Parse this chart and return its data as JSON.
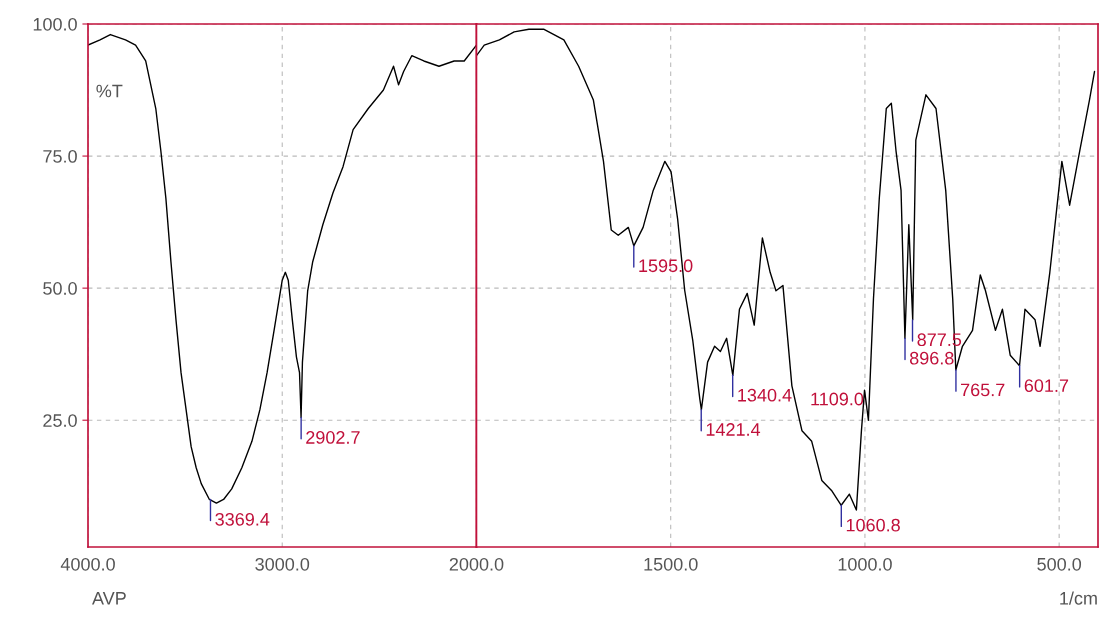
{
  "chart_data": [
    {
      "type": "line",
      "ylabel": "%T",
      "xlim": [
        4000,
        2000
      ],
      "ylim": [
        1,
        100
      ],
      "xticks": [
        {
          "value": 4000,
          "label": "4000.0"
        },
        {
          "value": 3000,
          "label": "3000.0"
        },
        {
          "value": 2000,
          "label": "2000.0"
        }
      ],
      "yticks": [
        {
          "value": 25,
          "label": "25.0"
        },
        {
          "value": 50,
          "label": "50.0"
        },
        {
          "value": 75,
          "label": "75.0"
        },
        {
          "value": 100,
          "label": "100.0"
        }
      ],
      "grid": true,
      "line_style": "solid",
      "series": [
        {
          "color": "#000000",
          "x": [
            4000,
            3938,
            3885,
            3807,
            3755,
            3703,
            3651,
            3625,
            3599,
            3573,
            3547,
            3521,
            3495,
            3469,
            3443,
            3417,
            3375,
            3339,
            3302,
            3260,
            3208,
            3156,
            3115,
            3078,
            3042,
            3000,
            2984,
            2969,
            2948,
            2927,
            2911,
            2903,
            2896,
            2869,
            2843,
            2791,
            2739,
            2687,
            2635,
            2557,
            2479,
            2427,
            2401,
            2375,
            2333,
            2271,
            2193,
            2115,
            2063,
            2000
          ],
          "values": [
            96,
            97,
            98,
            97,
            96,
            93,
            84,
            76,
            67,
            55,
            44,
            34,
            27,
            20,
            16,
            13,
            10,
            9.3,
            10,
            12,
            16,
            21,
            27,
            34,
            42,
            51.5,
            53,
            51.5,
            44,
            37,
            34,
            25.5,
            36,
            49.5,
            55,
            62,
            68,
            73,
            80,
            84,
            87.5,
            92,
            88.5,
            91,
            94,
            93,
            92,
            93,
            93,
            96
          ]
        }
      ],
      "annotations": [
        {
          "text": "3369.4",
          "x": 3369.4,
          "y": 10
        },
        {
          "text": "2902.7",
          "x": 2902.7,
          "y": 25.5
        },
        "AVP"
      ]
    },
    {
      "type": "line",
      "xlabel": "1/cm",
      "xlim": [
        2000,
        400
      ],
      "ylim": [
        1,
        100
      ],
      "tick_labels": "x",
      "xticks": [
        {
          "value": 1500,
          "label": "1500.0"
        },
        {
          "value": 1000,
          "label": "1000.0"
        },
        {
          "value": 500,
          "label": "500.0"
        }
      ],
      "yticks": [
        25,
        50,
        75,
        100
      ],
      "grid": true,
      "line_style": "solid",
      "series": [
        {
          "color": "#000000",
          "x": [
            2000,
            1980,
            1941,
            1903,
            1865,
            1826,
            1775,
            1737,
            1699,
            1673,
            1653,
            1635,
            1609,
            1595,
            1571,
            1545,
            1515,
            1499,
            1482,
            1464,
            1443,
            1425,
            1421,
            1405,
            1387,
            1372,
            1356,
            1340,
            1323,
            1303,
            1285,
            1264,
            1244,
            1229,
            1211,
            1188,
            1162,
            1137,
            1111,
            1086,
            1061,
            1040,
            1022,
            1009,
            1001,
            991,
            978,
            963,
            945,
            932,
            920,
            907,
            897,
            887,
            877,
            869,
            843,
            817,
            792,
            774,
            766,
            749,
            723,
            703,
            690,
            664,
            646,
            626,
            602,
            588,
            562,
            549,
            524,
            493,
            473,
            447,
            422,
            409
          ],
          "values": [
            94,
            96,
            97,
            98.5,
            99,
            99,
            97,
            92,
            85.6,
            74,
            61,
            60,
            61.5,
            58,
            61.5,
            68.5,
            74,
            72,
            63,
            49.6,
            40,
            29,
            27,
            36,
            39,
            38,
            40.5,
            33.5,
            46,
            49,
            43,
            59.5,
            53,
            49.5,
            50.5,
            31.5,
            23,
            21,
            13.6,
            11.7,
            8.9,
            11,
            8,
            23,
            30.7,
            25,
            48,
            67,
            84,
            85,
            76,
            68.5,
            40.5,
            62,
            44,
            78,
            86.6,
            84,
            68.5,
            48,
            34.5,
            39,
            42,
            52.5,
            49.6,
            42,
            46,
            37.3,
            35.3,
            46,
            44,
            39,
            53,
            74,
            65.7,
            76,
            85.6,
            91
          ]
        }
      ],
      "annotations": [
        {
          "text": "1595.0",
          "x": 1595,
          "y": 58
        },
        {
          "text": "1421.4",
          "x": 1421.4,
          "y": 27
        },
        {
          "text": "1340.4",
          "x": 1340.4,
          "y": 33.5
        },
        "1109.0",
        {
          "text": "1060.8",
          "x": 1060.8,
          "y": 8.9
        },
        {
          "text": "877.5",
          "x": 877.5,
          "y": 44
        },
        {
          "text": "896.8",
          "x": 896.8,
          "y": 40.5
        },
        {
          "text": "765.7",
          "x": 765.7,
          "y": 34.5
        },
        {
          "text": "601.7",
          "x": 601.7,
          "y": 35.3
        }
      ]
    }
  ]
}
